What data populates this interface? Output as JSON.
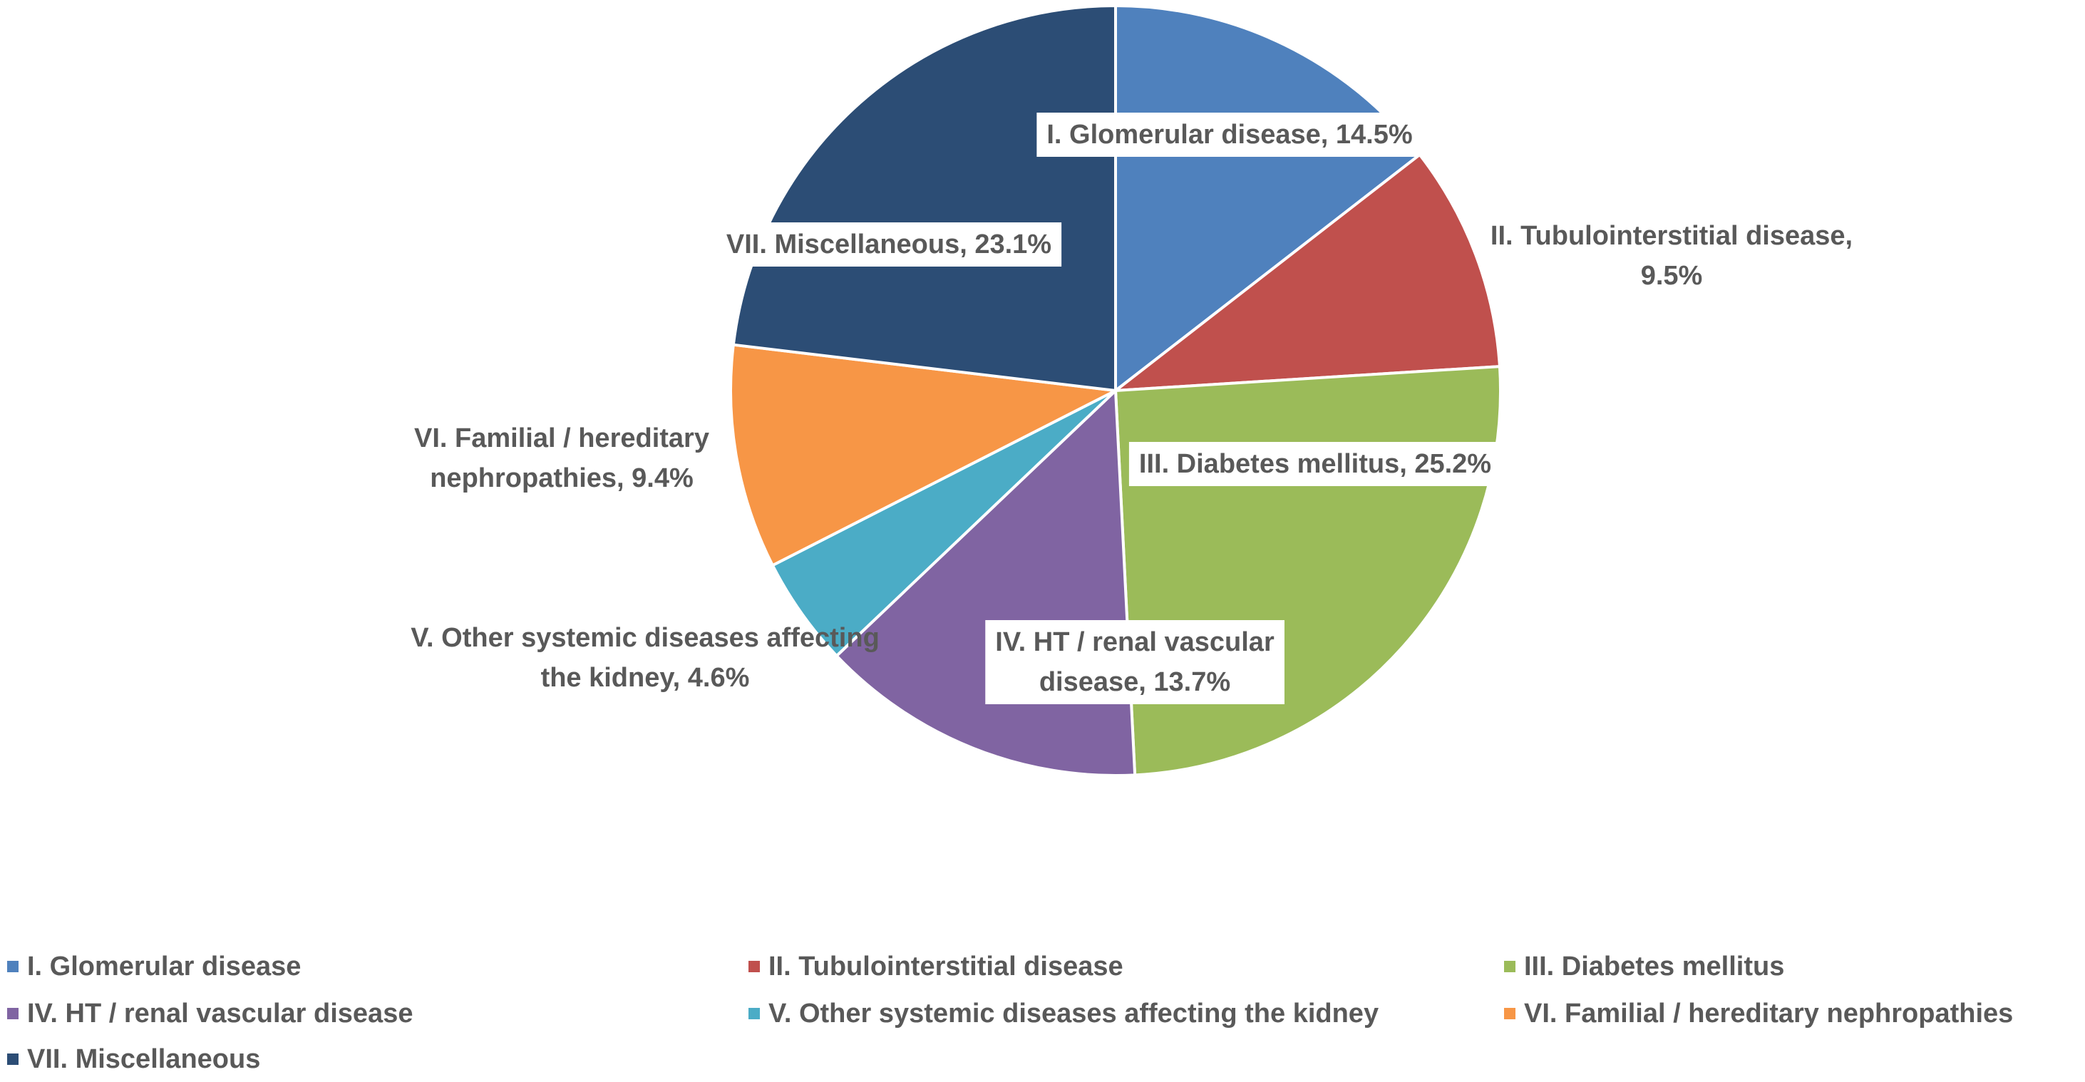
{
  "chart_data": {
    "type": "pie",
    "title": "",
    "slices": [
      {
        "label": "I. Glomerular disease",
        "value": 14.5,
        "display": "I. Glomerular disease, 14.5%",
        "color": "#4F81BD"
      },
      {
        "label": "II. Tubulointerstitial disease",
        "value": 9.5,
        "display": "II. Tubulointerstitial disease, 9.5%",
        "color": "#C0504D"
      },
      {
        "label": "III. Diabetes mellitus",
        "value": 25.2,
        "display": "III. Diabetes mellitus, 25.2%",
        "color": "#9BBB59"
      },
      {
        "label": "IV. HT / renal vascular disease",
        "value": 13.7,
        "display": "IV. HT / renal vascular disease, 13.7%",
        "color": "#8064A2"
      },
      {
        "label": "V. Other systemic diseases affecting the kidney",
        "value": 4.6,
        "display": "V. Other systemic diseases affecting the kidney, 4.6%",
        "color": "#4BACC6"
      },
      {
        "label": "VI. Familial / hereditary nephropathies",
        "value": 9.4,
        "display": "VI. Familial / hereditary nephropathies, 9.4%",
        "color": "#F79646"
      },
      {
        "label": "VII. Miscellaneous",
        "value": 23.1,
        "display": "VII. Miscellaneous, 23.1%",
        "color": "#2C4D75"
      }
    ],
    "legend_position": "bottom",
    "start_angle_deg": 0,
    "direction": "clockwise"
  }
}
